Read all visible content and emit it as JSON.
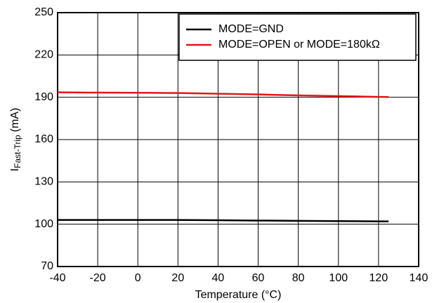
{
  "chart_data": {
    "type": "line",
    "xlabel": "Temperature (°C)",
    "ylabel": [
      "I",
      "Fast-Trip",
      "(mA)"
    ],
    "x": [
      -40,
      -20,
      0,
      20,
      40,
      60,
      80,
      100,
      120,
      125
    ],
    "series": [
      {
        "name": "MODE=GND",
        "color": "#000000",
        "values": [
          103,
          103,
          103,
          103,
          102.8,
          102.6,
          102.4,
          102.2,
          102,
          102
        ]
      },
      {
        "name": "MODE=OPEN or MODE=180kΩ",
        "color": "#e4161b",
        "values": [
          193.5,
          193.3,
          193.2,
          193,
          192.5,
          192,
          191.3,
          190.8,
          190.3,
          190.2
        ]
      }
    ],
    "xlim": [
      -40,
      140
    ],
    "xticks": [
      -40,
      -20,
      0,
      20,
      40,
      60,
      80,
      100,
      120,
      140
    ],
    "ylim": [
      70,
      250
    ],
    "yticks": [
      70,
      100,
      130,
      160,
      190,
      220,
      250
    ],
    "grid": true,
    "legend": "upper right"
  }
}
